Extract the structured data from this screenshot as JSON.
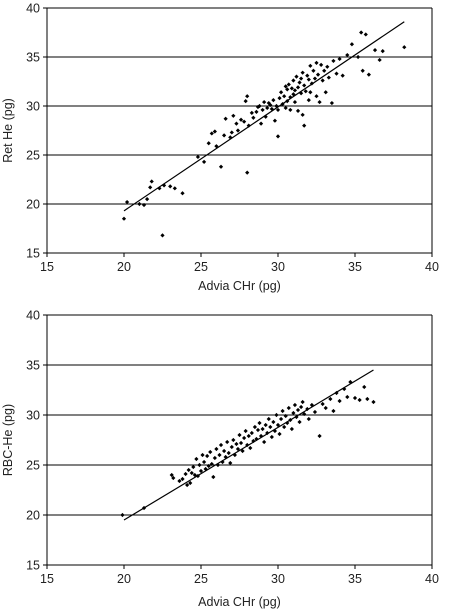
{
  "chart_data": [
    {
      "type": "scatter",
      "xlabel": "Advia CHr (pg)",
      "ylabel": "Ret He (pg)",
      "xlim": [
        15,
        40
      ],
      "ylim": [
        15,
        40
      ],
      "xticks": [
        15,
        20,
        25,
        30,
        35,
        40
      ],
      "yticks": [
        15,
        20,
        25,
        30,
        35,
        40
      ],
      "grid": "horizontal",
      "legend": "none",
      "marker_color": "#000000",
      "trendline": {
        "x": [
          20,
          38.2
        ],
        "y": [
          19.3,
          38.6
        ]
      },
      "series": [
        {
          "points": [
            [
              20.0,
              18.5
            ],
            [
              20.2,
              20.2
            ],
            [
              21.0,
              20.0
            ],
            [
              21.3,
              19.9
            ],
            [
              21.5,
              20.5
            ],
            [
              21.7,
              21.7
            ],
            [
              21.8,
              22.3
            ],
            [
              22.3,
              21.6
            ],
            [
              22.6,
              21.9
            ],
            [
              23.0,
              21.8
            ],
            [
              23.3,
              21.6
            ],
            [
              23.8,
              21.1
            ],
            [
              22.5,
              16.8
            ],
            [
              24.8,
              24.8
            ],
            [
              25.2,
              24.3
            ],
            [
              25.5,
              26.2
            ],
            [
              25.7,
              27.2
            ],
            [
              25.9,
              27.4
            ],
            [
              26.0,
              25.9
            ],
            [
              26.3,
              23.8
            ],
            [
              26.5,
              27.0
            ],
            [
              26.6,
              28.7
            ],
            [
              26.9,
              26.8
            ],
            [
              27.0,
              27.3
            ],
            [
              27.1,
              29.0
            ],
            [
              27.3,
              28.2
            ],
            [
              27.4,
              27.5
            ],
            [
              27.6,
              28.6
            ],
            [
              27.8,
              28.4
            ],
            [
              27.9,
              30.5
            ],
            [
              28.0,
              31.0
            ],
            [
              28.0,
              23.2
            ],
            [
              28.1,
              28.0
            ],
            [
              28.3,
              29.3
            ],
            [
              28.4,
              28.8
            ],
            [
              28.6,
              29.4
            ],
            [
              28.7,
              29.9
            ],
            [
              28.8,
              30.0
            ],
            [
              28.9,
              28.2
            ],
            [
              29.0,
              29.6
            ],
            [
              29.1,
              30.4
            ],
            [
              29.2,
              28.9
            ],
            [
              29.3,
              29.8
            ],
            [
              29.4,
              30.3
            ],
            [
              29.5,
              30.1
            ],
            [
              29.6,
              29.7
            ],
            [
              29.7,
              30.6
            ],
            [
              29.8,
              28.5
            ],
            [
              29.9,
              30.0
            ],
            [
              30.0,
              29.6
            ],
            [
              30.0,
              26.9
            ],
            [
              30.1,
              30.8
            ],
            [
              30.2,
              31.4
            ],
            [
              30.3,
              30.2
            ],
            [
              30.4,
              31.0
            ],
            [
              30.5,
              29.8
            ],
            [
              30.5,
              32.0
            ],
            [
              30.6,
              30.5
            ],
            [
              30.6,
              31.7
            ],
            [
              30.7,
              32.2
            ],
            [
              30.8,
              30.9
            ],
            [
              30.8,
              29.6
            ],
            [
              30.9,
              31.8
            ],
            [
              31.0,
              31.2
            ],
            [
              31.0,
              32.6
            ],
            [
              31.1,
              30.4
            ],
            [
              31.1,
              31.6
            ],
            [
              31.2,
              33.0
            ],
            [
              31.3,
              31.9
            ],
            [
              31.3,
              29.5
            ],
            [
              31.4,
              32.4
            ],
            [
              31.5,
              32.8
            ],
            [
              31.5,
              31.3
            ],
            [
              31.6,
              29.1
            ],
            [
              31.6,
              33.4
            ],
            [
              31.7,
              32.1
            ],
            [
              31.7,
              28.0
            ],
            [
              31.8,
              31.5
            ],
            [
              31.9,
              33.1
            ],
            [
              32.0,
              32.7
            ],
            [
              32.0,
              30.6
            ],
            [
              32.1,
              34.1
            ],
            [
              32.1,
              31.4
            ],
            [
              32.2,
              32.3
            ],
            [
              32.3,
              33.6
            ],
            [
              32.4,
              32.8
            ],
            [
              32.5,
              31.0
            ],
            [
              32.5,
              34.4
            ],
            [
              32.6,
              33.2
            ],
            [
              32.7,
              30.4
            ],
            [
              32.8,
              34.2
            ],
            [
              32.9,
              32.6
            ],
            [
              33.0,
              33.6
            ],
            [
              33.1,
              31.4
            ],
            [
              33.2,
              34.0
            ],
            [
              33.3,
              32.9
            ],
            [
              33.5,
              30.3
            ],
            [
              33.6,
              34.6
            ],
            [
              33.8,
              33.3
            ],
            [
              34.0,
              34.8
            ],
            [
              34.2,
              33.1
            ],
            [
              34.5,
              35.2
            ],
            [
              34.8,
              36.3
            ],
            [
              35.2,
              35.0
            ],
            [
              35.4,
              37.5
            ],
            [
              35.5,
              33.6
            ],
            [
              35.7,
              37.3
            ],
            [
              35.9,
              33.2
            ],
            [
              36.3,
              35.7
            ],
            [
              36.6,
              34.7
            ],
            [
              36.8,
              35.6
            ],
            [
              38.2,
              36.0
            ]
          ]
        }
      ]
    },
    {
      "type": "scatter",
      "xlabel": "Advia CHr (pg)",
      "ylabel": "RBC-He (pg)",
      "xlim": [
        15,
        40
      ],
      "ylim": [
        15,
        40
      ],
      "xticks": [
        15,
        20,
        25,
        30,
        35,
        40
      ],
      "yticks": [
        15,
        20,
        25,
        30,
        35,
        40
      ],
      "grid": "horizontal",
      "legend": "none",
      "marker_color": "#000000",
      "trendline": {
        "x": [
          20,
          36.2
        ],
        "y": [
          19.5,
          34.5
        ]
      },
      "series": [
        {
          "points": [
            [
              19.9,
              20.0
            ],
            [
              21.3,
              20.7
            ],
            [
              23.1,
              24.0
            ],
            [
              23.2,
              23.7
            ],
            [
              23.6,
              23.4
            ],
            [
              23.8,
              23.6
            ],
            [
              24.0,
              24.1
            ],
            [
              24.1,
              23.0
            ],
            [
              24.2,
              24.5
            ],
            [
              24.3,
              23.2
            ],
            [
              24.4,
              24.2
            ],
            [
              24.5,
              24.8
            ],
            [
              24.6,
              24.0
            ],
            [
              24.7,
              25.6
            ],
            [
              24.8,
              23.9
            ],
            [
              24.9,
              25.0
            ],
            [
              25.0,
              24.4
            ],
            [
              25.1,
              26.0
            ],
            [
              25.2,
              25.3
            ],
            [
              25.3,
              24.6
            ],
            [
              25.4,
              25.9
            ],
            [
              25.5,
              24.9
            ],
            [
              25.6,
              26.3
            ],
            [
              25.7,
              25.1
            ],
            [
              25.8,
              23.8
            ],
            [
              25.9,
              25.7
            ],
            [
              26.0,
              26.6
            ],
            [
              26.1,
              25.0
            ],
            [
              26.2,
              26.0
            ],
            [
              26.3,
              27.0
            ],
            [
              26.4,
              25.3
            ],
            [
              26.5,
              26.4
            ],
            [
              26.6,
              25.8
            ],
            [
              26.7,
              27.3
            ],
            [
              26.8,
              26.2
            ],
            [
              26.9,
              25.2
            ],
            [
              27.0,
              26.8
            ],
            [
              27.1,
              27.5
            ],
            [
              27.2,
              26.0
            ],
            [
              27.3,
              27.1
            ],
            [
              27.4,
              26.6
            ],
            [
              27.5,
              28.0
            ],
            [
              27.6,
              27.2
            ],
            [
              27.7,
              26.4
            ],
            [
              27.8,
              27.7
            ],
            [
              27.9,
              28.4
            ],
            [
              28.0,
              27.0
            ],
            [
              28.1,
              27.9
            ],
            [
              28.2,
              26.7
            ],
            [
              28.3,
              28.2
            ],
            [
              28.4,
              27.4
            ],
            [
              28.5,
              28.8
            ],
            [
              28.6,
              27.6
            ],
            [
              28.7,
              28.5
            ],
            [
              28.8,
              29.2
            ],
            [
              28.9,
              27.9
            ],
            [
              29.0,
              28.6
            ],
            [
              29.1,
              27.3
            ],
            [
              29.2,
              29.0
            ],
            [
              29.3,
              28.2
            ],
            [
              29.4,
              29.6
            ],
            [
              29.5,
              28.8
            ],
            [
              29.6,
              27.8
            ],
            [
              29.7,
              29.3
            ],
            [
              29.8,
              28.4
            ],
            [
              29.9,
              30.0
            ],
            [
              30.0,
              29.0
            ],
            [
              30.1,
              28.1
            ],
            [
              30.2,
              29.6
            ],
            [
              30.3,
              30.4
            ],
            [
              30.4,
              28.8
            ],
            [
              30.5,
              29.9
            ],
            [
              30.6,
              29.2
            ],
            [
              30.7,
              30.7
            ],
            [
              30.8,
              29.5
            ],
            [
              30.9,
              28.6
            ],
            [
              31.0,
              30.2
            ],
            [
              31.1,
              31.0
            ],
            [
              31.2,
              29.8
            ],
            [
              31.3,
              30.5
            ],
            [
              31.4,
              29.3
            ],
            [
              31.5,
              30.8
            ],
            [
              31.6,
              31.3
            ],
            [
              31.7,
              30.1
            ],
            [
              31.9,
              30.6
            ],
            [
              32.0,
              29.6
            ],
            [
              32.2,
              31.0
            ],
            [
              32.4,
              30.3
            ],
            [
              32.7,
              27.9
            ],
            [
              32.9,
              31.1
            ],
            [
              33.1,
              30.7
            ],
            [
              33.4,
              31.6
            ],
            [
              33.6,
              30.4
            ],
            [
              33.8,
              32.2
            ],
            [
              34.0,
              31.4
            ],
            [
              34.3,
              32.6
            ],
            [
              34.5,
              31.8
            ],
            [
              34.7,
              33.3
            ],
            [
              35.0,
              31.7
            ],
            [
              35.3,
              31.5
            ],
            [
              35.6,
              32.8
            ],
            [
              35.8,
              31.6
            ],
            [
              36.2,
              31.3
            ]
          ]
        }
      ]
    }
  ]
}
